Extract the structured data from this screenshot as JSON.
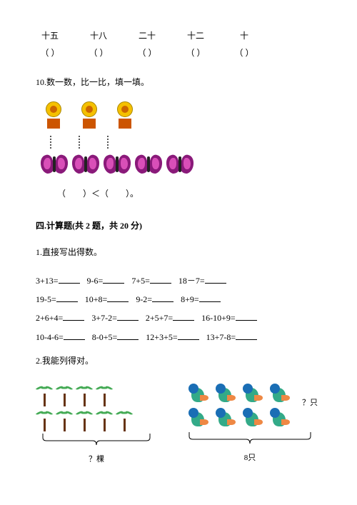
{
  "topNumbers": {
    "chars": [
      "十五",
      "十八",
      "二十",
      "十二",
      "十"
    ],
    "brackets": [
      "（  ）",
      "（  ）",
      "（  ）",
      "（  ）",
      "（  ）"
    ]
  },
  "q10": {
    "prompt": "10.数一数，比一比，填一填。",
    "flowerCount": 3,
    "butterflyCount": 5,
    "compareText": "（　　）＜（　　）。"
  },
  "section4": {
    "heading": "四.计算题(共 2 题，共 20 分)",
    "sub1": "1.直接写出得数。",
    "equations": [
      [
        "3+13=",
        "9-6=",
        "7+5=",
        "18－7="
      ],
      [
        "19-5=",
        "10+8=",
        "9-2=",
        "8+9="
      ],
      [
        "2+6+4=",
        "3+7-2=",
        "2+5+7=",
        "16-10+9="
      ],
      [
        "10-4-6=",
        "8-0+5=",
        "12+3+5=",
        "13+7-8="
      ]
    ],
    "sub2": "2.我能列得对。",
    "palms": {
      "row1Count": 4,
      "row2Count": 5,
      "captionQ": "？棵"
    },
    "parrots": {
      "row1Count": 4,
      "row2Count": 4,
      "qLabel": "？只",
      "totalLabel": "8只"
    }
  },
  "colors": {
    "flower": "#f5c000",
    "pot": "#cc5500",
    "butterflyWing": "#8a1a7a",
    "butterflyInner": "#d94fb8",
    "palmLeaf": "#44aa55",
    "trunk": "#663311",
    "parrotHead": "#1a6eb5",
    "parrotBody": "#33aa88",
    "parrotTail": "#ee8844"
  }
}
